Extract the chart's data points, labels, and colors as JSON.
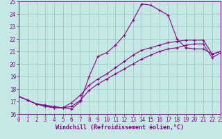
{
  "title": "",
  "xlabel": "Windchill (Refroidissement éolien,°C)",
  "ylabel": "",
  "bg_color": "#c5e8e5",
  "line_color": "#880088",
  "grid_color": "#99cccc",
  "xmin": 0,
  "xmax": 23,
  "ymin": 16,
  "ymax": 25,
  "curve1_x": [
    0,
    1,
    2,
    3,
    4,
    5,
    6,
    7,
    8,
    9,
    10,
    11,
    12,
    13,
    14,
    15,
    16,
    17,
    18,
    19,
    20,
    21,
    22,
    23
  ],
  "curve1_y": [
    17.4,
    17.1,
    16.8,
    16.6,
    16.5,
    16.5,
    16.4,
    17.0,
    19.0,
    20.6,
    20.9,
    21.5,
    22.3,
    23.5,
    24.8,
    24.7,
    24.3,
    23.9,
    22.0,
    21.3,
    21.2,
    21.2,
    20.8,
    21.0
  ],
  "curve2_x": [
    0,
    1,
    2,
    3,
    4,
    5,
    6,
    7,
    8,
    9,
    10,
    11,
    12,
    13,
    14,
    15,
    16,
    17,
    18,
    19,
    20,
    21,
    22,
    23
  ],
  "curve2_y": [
    17.4,
    17.1,
    16.8,
    16.7,
    16.6,
    16.5,
    16.9,
    17.5,
    18.3,
    18.8,
    19.2,
    19.7,
    20.2,
    20.7,
    21.1,
    21.3,
    21.5,
    21.7,
    21.8,
    21.9,
    21.9,
    21.9,
    20.8,
    21.0
  ],
  "curve3_x": [
    0,
    1,
    2,
    3,
    4,
    5,
    6,
    7,
    8,
    9,
    10,
    11,
    12,
    13,
    14,
    15,
    16,
    17,
    18,
    19,
    20,
    21,
    22,
    23
  ],
  "curve3_y": [
    17.4,
    17.1,
    16.8,
    16.7,
    16.5,
    16.5,
    16.6,
    17.1,
    17.9,
    18.4,
    18.8,
    19.2,
    19.6,
    20.0,
    20.4,
    20.7,
    21.0,
    21.2,
    21.3,
    21.5,
    21.6,
    21.6,
    20.5,
    20.9
  ],
  "tick_fontsize": 5.5,
  "xlabel_fontsize": 6.0
}
